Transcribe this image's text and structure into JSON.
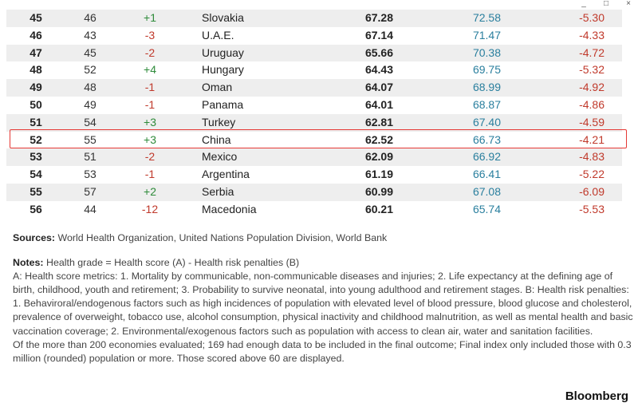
{
  "window_controls": [
    "_",
    "□",
    "×"
  ],
  "rows": [
    {
      "rank": "45",
      "prev": "46",
      "change": "+1",
      "dir": "up",
      "country": "Slovakia",
      "grade": "67.28",
      "score": "72.58",
      "penalty": "-5.30"
    },
    {
      "rank": "46",
      "prev": "43",
      "change": "-3",
      "dir": "down",
      "country": "U.A.E.",
      "grade": "67.14",
      "score": "71.47",
      "penalty": "-4.33"
    },
    {
      "rank": "47",
      "prev": "45",
      "change": "-2",
      "dir": "down",
      "country": "Uruguay",
      "grade": "65.66",
      "score": "70.38",
      "penalty": "-4.72"
    },
    {
      "rank": "48",
      "prev": "52",
      "change": "+4",
      "dir": "up",
      "country": "Hungary",
      "grade": "64.43",
      "score": "69.75",
      "penalty": "-5.32"
    },
    {
      "rank": "49",
      "prev": "48",
      "change": "-1",
      "dir": "down",
      "country": "Oman",
      "grade": "64.07",
      "score": "68.99",
      "penalty": "-4.92"
    },
    {
      "rank": "50",
      "prev": "49",
      "change": "-1",
      "dir": "down",
      "country": "Panama",
      "grade": "64.01",
      "score": "68.87",
      "penalty": "-4.86"
    },
    {
      "rank": "51",
      "prev": "54",
      "change": "+3",
      "dir": "up",
      "country": "Turkey",
      "grade": "62.81",
      "score": "67.40",
      "penalty": "-4.59"
    },
    {
      "rank": "52",
      "prev": "55",
      "change": "+3",
      "dir": "up",
      "country": "China",
      "grade": "62.52",
      "score": "66.73",
      "penalty": "-4.21",
      "highlighted": true
    },
    {
      "rank": "53",
      "prev": "51",
      "change": "-2",
      "dir": "down",
      "country": "Mexico",
      "grade": "62.09",
      "score": "66.92",
      "penalty": "-4.83"
    },
    {
      "rank": "54",
      "prev": "53",
      "change": "-1",
      "dir": "down",
      "country": "Argentina",
      "grade": "61.19",
      "score": "66.41",
      "penalty": "-5.22"
    },
    {
      "rank": "55",
      "prev": "57",
      "change": "+2",
      "dir": "up",
      "country": "Serbia",
      "grade": "60.99",
      "score": "67.08",
      "penalty": "-6.09"
    },
    {
      "rank": "56",
      "prev": "44",
      "change": "-12",
      "dir": "down",
      "country": "Macedonia",
      "grade": "60.21",
      "score": "65.74",
      "penalty": "-5.53"
    }
  ],
  "sources": {
    "label": "Sources:",
    "text": "World Health Organization, United Nations Population Division, World Bank"
  },
  "notes": {
    "label": "Notes:",
    "lead": "Health grade = Health score (A) - Health risk penalties (B)",
    "body": "A: Health score metrics: 1. Mortality by communicable, non-communicable diseases and injuries; 2. Life expectancy at the defining age of birth, childhood, youth and retirement; 3. Probability to survive neonatal, into young adulthood and retirement stages. B: Health risk penalties: 1. Behaviroral/endogenous factors such as high incidences of population with elevated level of blood pressure, blood glucose and cholesterol, prevalence of overweight, tobacco use, alcohol consumption, physical inactivity and childhood malnutrition, as well as mental health and basic vaccination coverage; 2. Environmental/exogenous factors such as population with access to clean air, water and sanitation facilities.",
    "footer": "Of the more than 200 economies evaluated; 169 had enough data to be included in the final outcome; Final index only included those with 0.3 million (rounded) population or more. Those scored above 60 are displayed."
  },
  "brand": "Bloomberg",
  "colors": {
    "up": "#2e8b3a",
    "down": "#c0392b",
    "score": "#2a7f9e",
    "highlight_border": "#e53935",
    "stripe": "#eeeeee"
  }
}
